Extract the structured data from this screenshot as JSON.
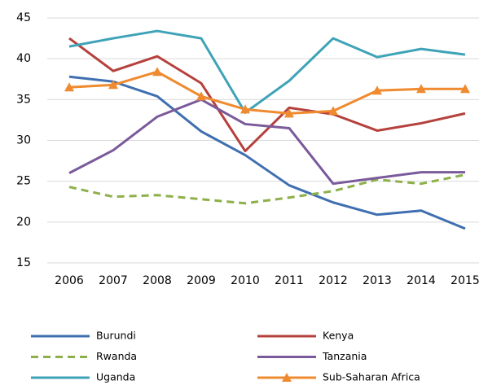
{
  "chart_data": {
    "type": "line",
    "x": [
      2006,
      2007,
      2008,
      2009,
      2010,
      2011,
      2012,
      2013,
      2014,
      2015
    ],
    "xlim": [
      2006,
      2015
    ],
    "xticks": [
      2006,
      2007,
      2008,
      2009,
      2010,
      2011,
      2012,
      2013,
      2014,
      2015
    ],
    "ylim": [
      15,
      45
    ],
    "yticks": [
      15,
      20,
      25,
      30,
      35,
      40,
      45
    ],
    "grid": true,
    "legend": "bottom",
    "series": [
      {
        "name": "Burundi",
        "color": "#3f6fb0",
        "values": [
          37.8,
          37.2,
          35.4,
          31.1,
          28.2,
          24.5,
          22.4,
          20.9,
          21.4,
          19.2
        ]
      },
      {
        "name": "Kenya",
        "color": "#b5413d",
        "values": [
          42.5,
          38.5,
          40.3,
          37,
          28.7,
          34,
          33.2,
          31.2,
          32.1,
          33.3
        ]
      },
      {
        "name": "Rwanda",
        "color": "#8db04a",
        "dash": "dashed",
        "values": [
          24.3,
          23.1,
          23.3,
          22.8,
          22.3,
          23,
          23.8,
          25.2,
          24.7,
          25.8
        ]
      },
      {
        "name": "Tanzania",
        "color": "#7a5a9a",
        "values": [
          26,
          28.8,
          32.9,
          35,
          32,
          31.5,
          24.7,
          25.4,
          26.1,
          26.1
        ]
      },
      {
        "name": "Uganda",
        "color": "#3fa3b8",
        "values": [
          41.5,
          42.5,
          43.4,
          42.5,
          33.4,
          37.3,
          42.5,
          40.2,
          41.2,
          40.5
        ]
      },
      {
        "name": "Sub-Saharan Africa",
        "color": "#ef8a2f",
        "marker": "triangle",
        "values": [
          36.5,
          36.8,
          38.4,
          35.4,
          33.8,
          33.3,
          33.6,
          36.1,
          36.3,
          36.3
        ]
      }
    ]
  }
}
